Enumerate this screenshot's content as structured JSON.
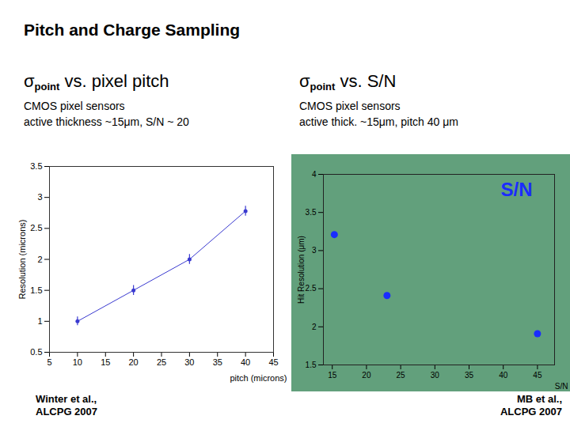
{
  "title": "Pitch and Charge Sampling",
  "chart_data": [
    {
      "type": "line",
      "title": [
        "σ",
        "point",
        " vs. pixel pitch"
      ],
      "subtitle": [
        "CMOS pixel sensors",
        "active thickness ~15μm, S/N ~ 20"
      ],
      "caption": [
        "Winter et al.,",
        "ALCPG 2007"
      ],
      "xlabel": "pitch (microns)",
      "ylabel": "Resolution (microns)",
      "x": [
        10,
        20,
        30,
        40
      ],
      "values": [
        1.0,
        1.5,
        2.0,
        2.78
      ],
      "errors": [
        0.07,
        0.08,
        0.08,
        0.08
      ],
      "color": "#3a3ad0",
      "marker": "circle",
      "line_style": "solid",
      "xlim": [
        5,
        45
      ],
      "xticks": [
        5,
        10,
        15,
        20,
        25,
        30,
        35,
        40,
        45
      ],
      "ylim": [
        0.5,
        3.5
      ],
      "yticks": [
        0.5,
        1,
        1.5,
        2,
        2.5,
        3,
        3.5
      ],
      "grid": false
    },
    {
      "type": "scatter",
      "title": [
        "σ",
        "point",
        " vs. S/N"
      ],
      "subtitle": [
        "CMOS pixel sensors",
        "active thick. ~15μm, pitch 40 μm"
      ],
      "caption": [
        "MB et al.,",
        "ALCPG 2007"
      ],
      "annotation": "S/N",
      "xlabel": "S/N",
      "ylabel": "Hit Resolution (μm)",
      "x": [
        15.3,
        23,
        45
      ],
      "values": [
        3.21,
        2.41,
        1.91
      ],
      "color": "#1a2cff",
      "marker": "circle",
      "xlim": [
        13.7,
        47.5
      ],
      "xticks": [
        15,
        20,
        25,
        30,
        35,
        40,
        45
      ],
      "ylim": [
        1.5,
        4
      ],
      "yticks": [
        1.5,
        2,
        2.5,
        3,
        3.5,
        4
      ],
      "grid": false
    }
  ]
}
